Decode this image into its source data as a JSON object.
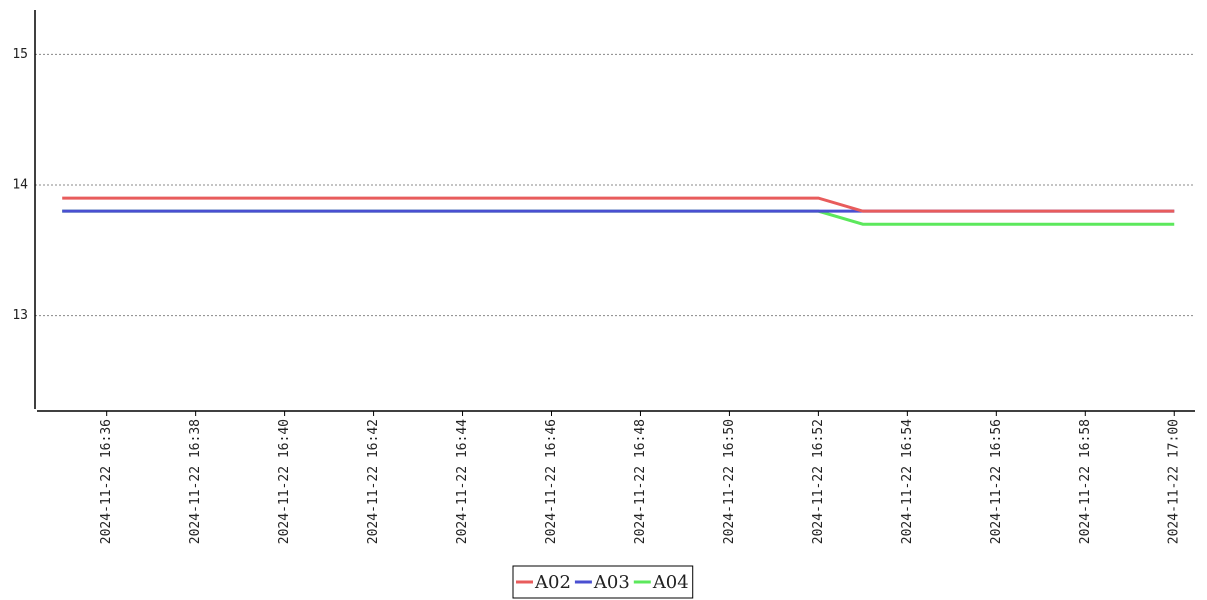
{
  "chart_data": {
    "type": "line",
    "x": [
      "2024-11-22 16:35",
      "2024-11-22 16:52",
      "2024-11-22 16:53",
      "2024-11-22 17:00"
    ],
    "series": [
      {
        "name": "A02",
        "color": "#e85c5c",
        "values": [
          13.9,
          13.9,
          13.8,
          13.8
        ]
      },
      {
        "name": "A03",
        "color": "#4a4fd1",
        "values": [
          13.8,
          13.8,
          13.8,
          13.8
        ]
      },
      {
        "name": "A04",
        "color": "#5ce85c",
        "values": [
          13.8,
          13.8,
          13.7,
          13.7
        ]
      }
    ],
    "xlim": [
      "2024-11-22 16:34:26",
      "2024-11-22 17:00:28"
    ],
    "xticks": [
      "2024-11-22 16:36",
      "2024-11-22 16:38",
      "2024-11-22 16:40",
      "2024-11-22 16:42",
      "2024-11-22 16:44",
      "2024-11-22 16:46",
      "2024-11-22 16:48",
      "2024-11-22 16:50",
      "2024-11-22 16:52",
      "2024-11-22 16:54",
      "2024-11-22 16:56",
      "2024-11-22 16:58",
      "2024-11-22 17:00"
    ],
    "ylim": [
      12.27,
      15.34
    ],
    "yticks": [
      13,
      14,
      15
    ],
    "grid": true,
    "legend": "bottom"
  }
}
